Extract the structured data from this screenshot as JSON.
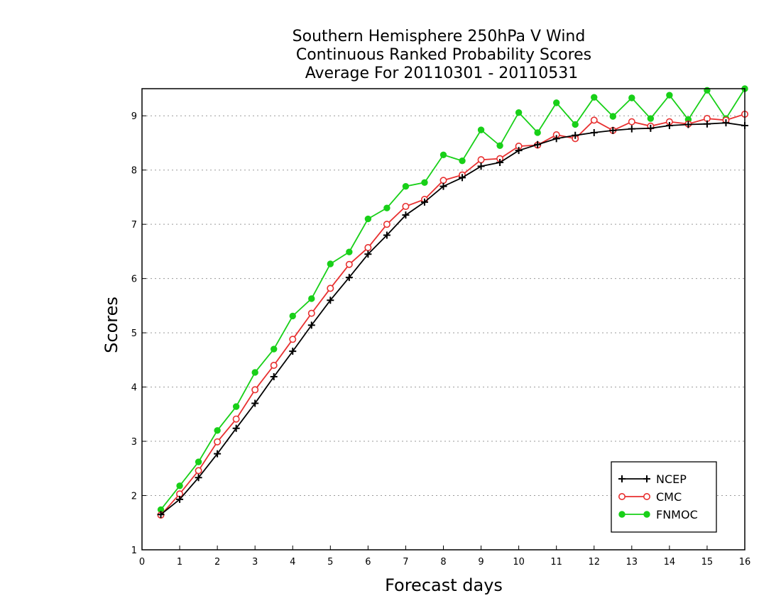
{
  "chart_data": {
    "type": "line",
    "title_lines": [
      "Southern Hemisphere 250hPa V Wind",
      "Continuous Ranked Probability Scores",
      "Average For 20110301 - 20110531"
    ],
    "xlabel": "Forecast days",
    "ylabel": "Scores",
    "xlim": [
      0,
      16
    ],
    "ylim": [
      1,
      9.5
    ],
    "xticks": [
      "0",
      "1",
      "2",
      "3",
      "4",
      "5",
      "6",
      "7",
      "8",
      "9",
      "10",
      "11",
      "12",
      "13",
      "14",
      "15",
      "16"
    ],
    "yticks": [
      "1",
      "2",
      "3",
      "4",
      "5",
      "6",
      "7",
      "8",
      "9"
    ],
    "grid": "horizontal dotted",
    "legend_position": "bottom-right",
    "x": [
      0.5,
      1,
      1.5,
      2,
      2.5,
      3,
      3.5,
      4,
      4.5,
      5,
      5.5,
      6,
      6.5,
      7,
      7.5,
      8,
      8.5,
      9,
      9.5,
      10,
      10.5,
      11,
      11.5,
      12,
      12.5,
      13,
      13.5,
      14,
      14.5,
      15,
      15.5,
      16
    ],
    "series": [
      {
        "name": "NCEP",
        "color": "#000000",
        "marker": "plus",
        "values": [
          1.65,
          1.93,
          2.33,
          2.77,
          3.24,
          3.7,
          4.19,
          4.66,
          5.14,
          5.6,
          6.02,
          6.45,
          6.8,
          7.17,
          7.41,
          7.7,
          7.86,
          8.07,
          8.14,
          8.36,
          8.47,
          8.58,
          8.64,
          8.69,
          8.73,
          8.76,
          8.77,
          8.82,
          8.84,
          8.85,
          8.87,
          8.82
        ]
      },
      {
        "name": "CMC",
        "color": "#e83030",
        "marker": "open-circle",
        "values": [
          1.64,
          2.03,
          2.46,
          2.99,
          3.41,
          3.95,
          4.4,
          4.88,
          5.36,
          5.82,
          6.26,
          6.57,
          7.0,
          7.33,
          7.46,
          7.81,
          7.91,
          8.19,
          8.21,
          8.44,
          8.46,
          8.65,
          8.58,
          8.92,
          8.73,
          8.89,
          8.81,
          8.89,
          8.85,
          8.95,
          8.92,
          9.03
        ]
      },
      {
        "name": "FNMOC",
        "color": "#18d018",
        "marker": "filled-circle",
        "values": [
          1.74,
          2.18,
          2.62,
          3.2,
          3.64,
          4.27,
          4.7,
          5.31,
          5.63,
          6.27,
          6.49,
          7.1,
          7.3,
          7.7,
          7.77,
          8.28,
          8.17,
          8.74,
          8.45,
          9.06,
          8.69,
          9.24,
          8.84,
          9.34,
          8.99,
          9.33,
          8.95,
          9.38,
          8.93,
          9.47,
          8.95,
          9.5
        ]
      }
    ]
  }
}
